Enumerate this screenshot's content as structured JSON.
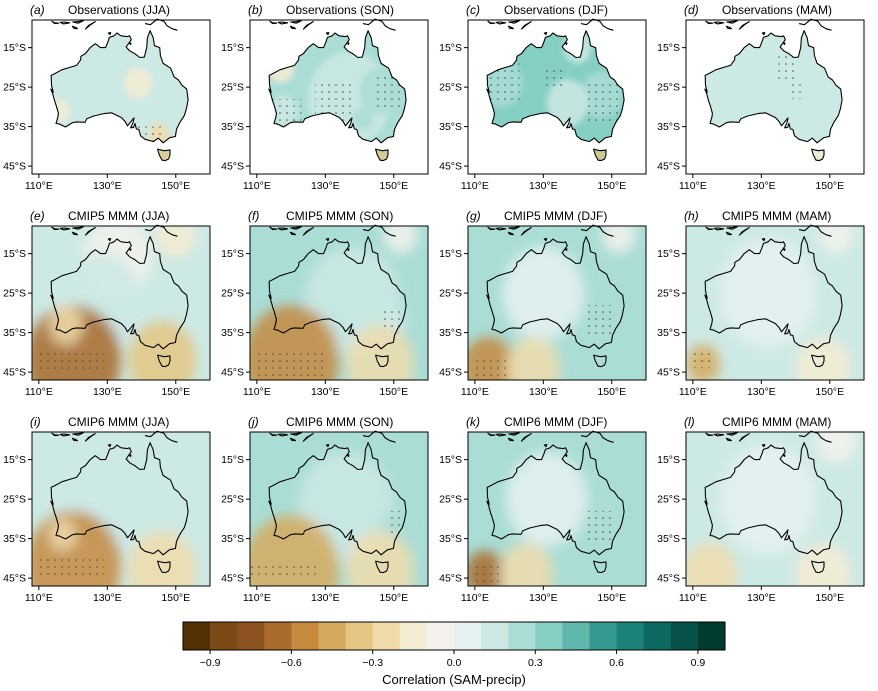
{
  "panels": [
    {
      "letter": "(a)",
      "title": "Observations (JJA)",
      "source": "obs",
      "season": "JJA"
    },
    {
      "letter": "(b)",
      "title": "Observations (SON)",
      "source": "obs",
      "season": "SON"
    },
    {
      "letter": "(c)",
      "title": "Observations (DJF)",
      "source": "obs",
      "season": "DJF"
    },
    {
      "letter": "(d)",
      "title": "Observations (MAM)",
      "source": "obs",
      "season": "MAM"
    },
    {
      "letter": "(e)",
      "title": "CMIP5 MMM (JJA)",
      "source": "cmip5",
      "season": "JJA"
    },
    {
      "letter": "(f)",
      "title": "CMIP5 MMM (SON)",
      "source": "cmip5",
      "season": "SON"
    },
    {
      "letter": "(g)",
      "title": "CMIP5 MMM (DJF)",
      "source": "cmip5",
      "season": "DJF"
    },
    {
      "letter": "(h)",
      "title": "CMIP5 MMM (MAM)",
      "source": "cmip5",
      "season": "MAM"
    },
    {
      "letter": "(i)",
      "title": "CMIP6 MMM (JJA)",
      "source": "cmip6",
      "season": "JJA"
    },
    {
      "letter": "(j)",
      "title": "CMIP6 MMM (SON)",
      "source": "cmip6",
      "season": "SON"
    },
    {
      "letter": "(k)",
      "title": "CMIP6 MMM (DJF)",
      "source": "cmip6",
      "season": "DJF"
    },
    {
      "letter": "(l)",
      "title": "CMIP6 MMM (MAM)",
      "source": "cmip6",
      "season": "MAM"
    }
  ],
  "lat_labels": [
    "15°S",
    "25°S",
    "35°S",
    "45°S"
  ],
  "lon_labels": [
    "110°E",
    "130°E",
    "150°E"
  ],
  "colorbar": {
    "label": "Correlation (SAM-precip)",
    "tick_labels": [
      "−0.9",
      "−0.6",
      "−0.3",
      "0.0",
      "0.3",
      "0.6",
      "0.9"
    ],
    "tick_values": [
      -0.9,
      -0.6,
      -0.3,
      0.0,
      0.3,
      0.6,
      0.9
    ],
    "range": [
      -1.0,
      1.0
    ],
    "colors": [
      "#543005",
      "#7b4a15",
      "#8c5220",
      "#a96a2a",
      "#c68a3e",
      "#d6aa5e",
      "#e4c582",
      "#f0dcab",
      "#f6ecd3",
      "#f3f2ec",
      "#e6f1f1",
      "#cde9e5",
      "#a9ddd6",
      "#85cfc5",
      "#5fb8ab",
      "#35998f",
      "#1c8178",
      "#0e6a60",
      "#075248",
      "#003c30"
    ]
  },
  "colors": {
    "background": "#ffffff",
    "coast": "#000000",
    "stipple": "#4a4a4a"
  }
}
